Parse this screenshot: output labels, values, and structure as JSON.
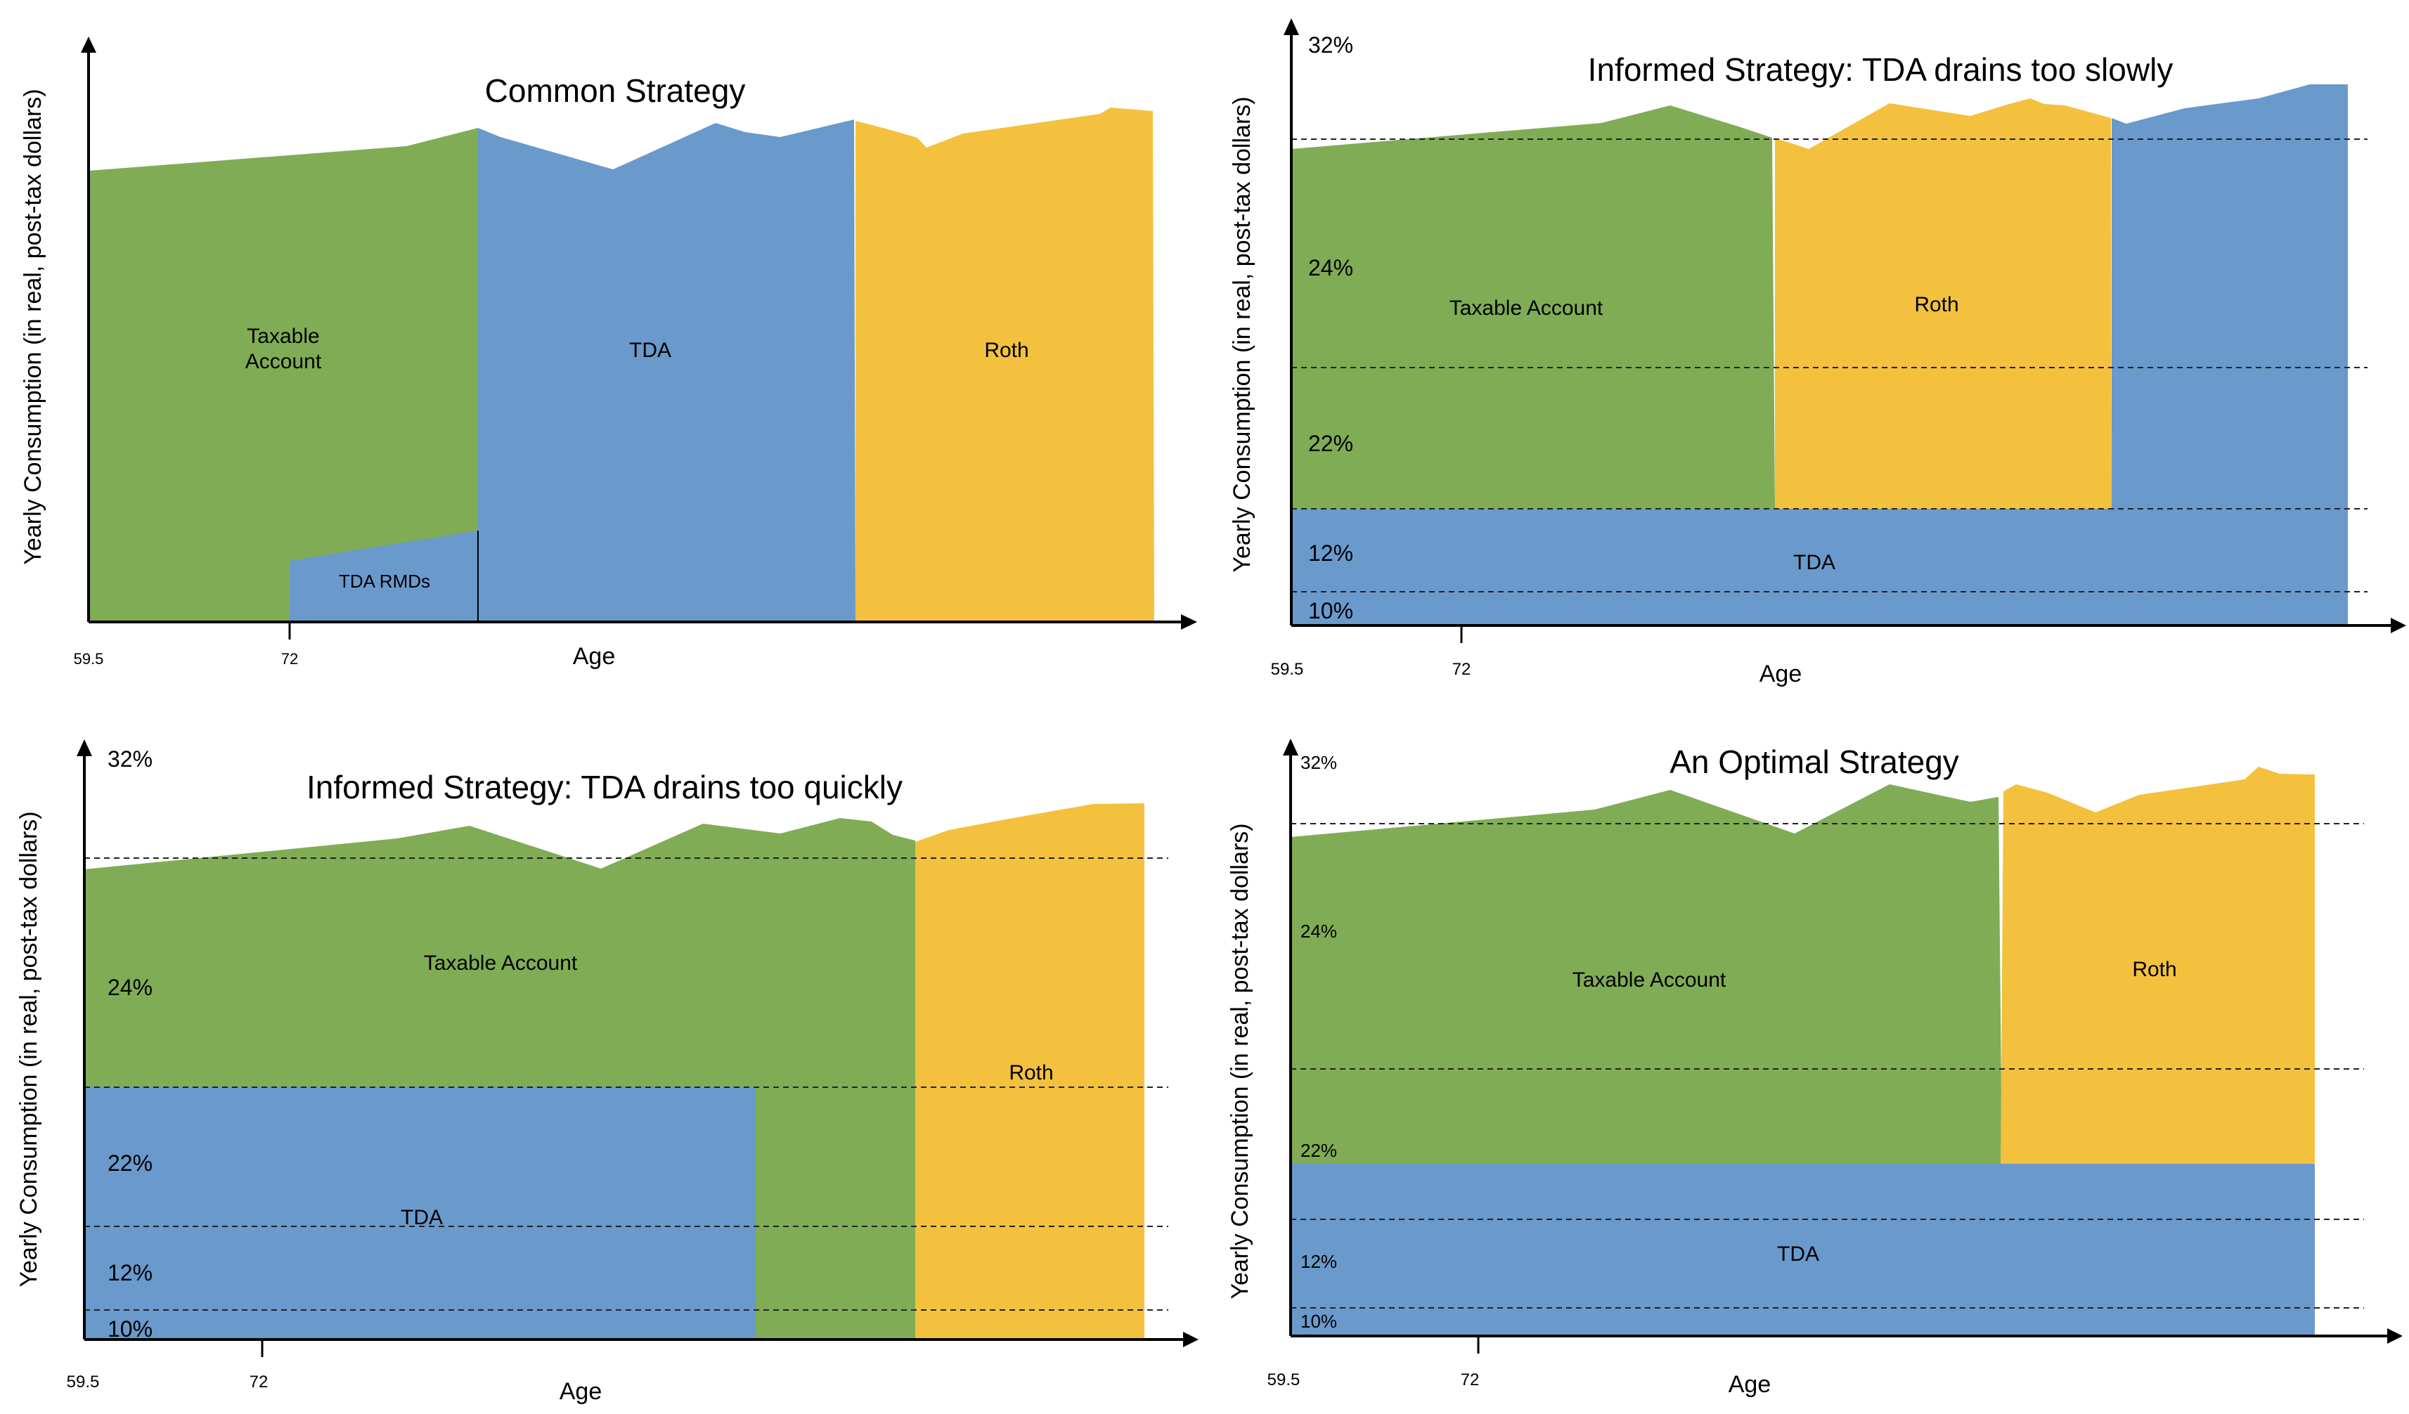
{
  "colors": {
    "taxable": "#80ac55",
    "tda": "#6a99cc",
    "roth": "#f3c13e",
    "axis": "#000000"
  },
  "panels": [
    {
      "id": "common",
      "title": "Common Strategy",
      "y_axis_label": "Yearly Consumption (in real, post-tax dollars)",
      "x_axis_label": "Age",
      "x_ticks": [
        "59.5",
        "72"
      ],
      "bracket_labels": [],
      "region_labels": {
        "taxable": "Taxable\nAccount",
        "tda": "TDA",
        "roth": "Roth",
        "rmd": "TDA RMDs"
      }
    },
    {
      "id": "slow",
      "title": "Informed Strategy: TDA drains too slowly",
      "y_axis_label": "Yearly Consumption (in real, post-tax dollars)",
      "x_axis_label": "Age",
      "x_ticks": [
        "59.5",
        "72"
      ],
      "bracket_labels": [
        "32%",
        "24%",
        "22%",
        "12%",
        "10%"
      ],
      "region_labels": {
        "taxable": "Taxable Account",
        "roth": "Roth",
        "tda": "TDA"
      }
    },
    {
      "id": "quick",
      "title": "Informed Strategy: TDA drains too quickly",
      "y_axis_label": "Yearly Consumption (in real, post-tax dollars)",
      "x_axis_label": "Age",
      "x_ticks": [
        "59.5",
        "72"
      ],
      "bracket_labels": [
        "32%",
        "24%",
        "22%",
        "12%",
        "10%"
      ],
      "region_labels": {
        "taxable": "Taxable Account",
        "tda": "TDA",
        "roth": "Roth"
      }
    },
    {
      "id": "optimal",
      "title": "An Optimal Strategy",
      "y_axis_label": "Yearly Consumption (in real, post-tax dollars)",
      "x_axis_label": "Age",
      "x_ticks": [
        "59.5",
        "72"
      ],
      "bracket_labels": [
        "32%",
        "24%",
        "22%",
        "12%",
        "10%"
      ],
      "region_labels": {
        "taxable": "Taxable Account",
        "roth": "Roth",
        "tda": "TDA"
      }
    }
  ]
}
